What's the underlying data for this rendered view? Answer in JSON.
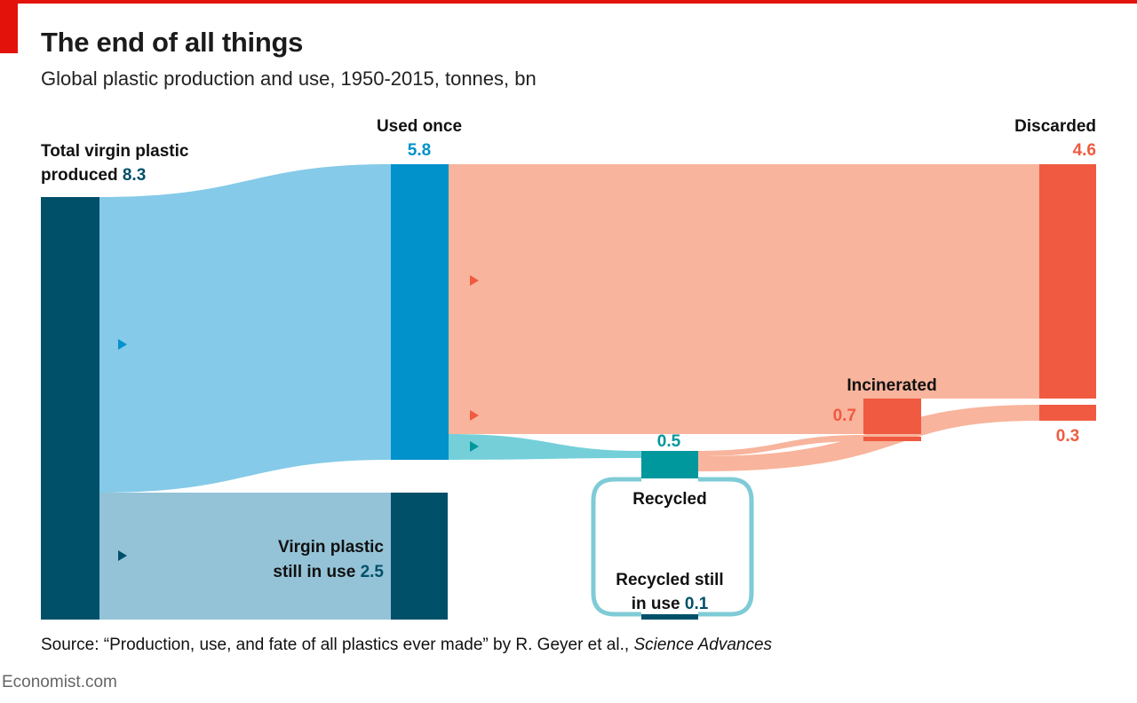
{
  "header": {
    "title": "The end of all things",
    "subtitle": "Global plastic production and use, 1950-2015, tonnes, bn"
  },
  "colors": {
    "navy": "#00506a",
    "blue": "#0192cc",
    "light_blue_flow": "#85cae8",
    "grey_blue_flow": "#94c3d7",
    "teal": "#00979d",
    "teal_flow": "#74cfd9",
    "red": "#f05a40",
    "salmon_flow": "#f8b49c"
  },
  "chart_data": {
    "type": "sankey",
    "units": "tonnes, bn",
    "nodes": [
      {
        "id": "produced",
        "label": "Total virgin plastic produced",
        "value": 8.3
      },
      {
        "id": "used_once",
        "label": "Used once",
        "value": 5.8
      },
      {
        "id": "in_use",
        "label": "Virgin plastic still in use",
        "value": 2.5
      },
      {
        "id": "recycled",
        "label": "Recycled",
        "value": 0.5
      },
      {
        "id": "recycled_in_use",
        "label": "Recycled still in use",
        "value": 0.1
      },
      {
        "id": "incinerated",
        "label": "Incinerated",
        "value": 0.7
      },
      {
        "id": "discarded",
        "label": "Discarded",
        "value": 4.9
      }
    ],
    "links": [
      {
        "source": "produced",
        "target": "used_once",
        "value": 5.8
      },
      {
        "source": "produced",
        "target": "in_use",
        "value": 2.5
      },
      {
        "source": "used_once",
        "target": "discarded",
        "value": 4.6
      },
      {
        "source": "used_once",
        "target": "incinerated",
        "value": 0.7
      },
      {
        "source": "used_once",
        "target": "recycled",
        "value": 0.5
      },
      {
        "source": "recycled",
        "target": "recycled_in_use",
        "value": 0.1
      },
      {
        "source": "recycled",
        "target": "incinerated",
        "value": 0.1
      },
      {
        "source": "recycled",
        "target": "discarded",
        "value": 0.3
      }
    ],
    "labels": {
      "produced_line1": "Total virgin plastic",
      "produced_line2": "produced",
      "produced_value": "8.3",
      "used_once": "Used once",
      "used_once_value": "5.8",
      "in_use_line1": "Virgin plastic",
      "in_use_line2": "still in use",
      "in_use_value": "2.5",
      "recycled": "Recycled",
      "recycled_value": "0.5",
      "recycled_in_use_line1": "Recycled still",
      "recycled_in_use_line2": "in use",
      "recycled_in_use_value": "0.1",
      "incinerated": "Incinerated",
      "incinerated_value": "0.7",
      "discarded": "Discarded",
      "discarded_value": "4.6",
      "discarded_from_recycled_value": "0.3"
    }
  },
  "footer": {
    "source_prefix": "Source: “Production, use, and fate of all plastics ever made” by R. Geyer et al., ",
    "source_journal": "Science Advances",
    "brand": "Economist.com"
  }
}
